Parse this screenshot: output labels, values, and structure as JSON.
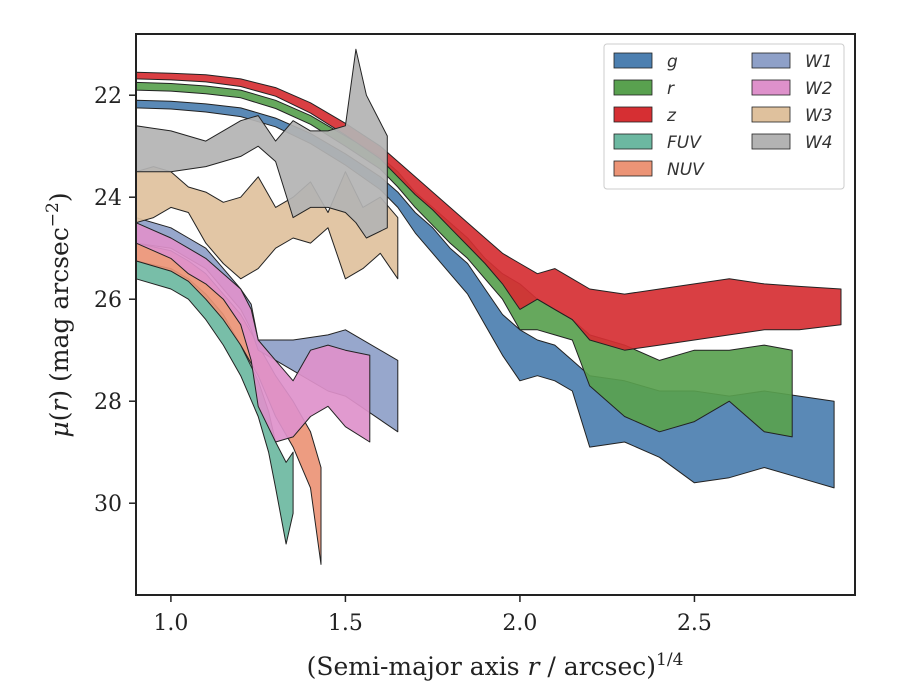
{
  "chart_data": {
    "type": "area",
    "title": "",
    "xlabel": "(Semi-major axis r / arcsec)^1/4",
    "ylabel": "μ(r) (mag arcsec^−2)",
    "xlim": [
      0.9,
      2.96
    ],
    "ylim": [
      31.8,
      20.8
    ],
    "y_inverted": true,
    "xticks": [
      1.0,
      1.5,
      2.0,
      2.5
    ],
    "xtick_labels": [
      "1.0",
      "1.5",
      "2.0",
      "2.5"
    ],
    "yticks": [
      22,
      24,
      26,
      28,
      30
    ],
    "ytick_labels": [
      "22",
      "24",
      "26",
      "28",
      "30"
    ],
    "grid": false,
    "legend_position": "top-right",
    "legend_columns": 2,
    "series": [
      {
        "name": "g",
        "color": "#4c7fb0",
        "band": [
          [
            0.9,
            22.1,
            22.25
          ],
          [
            1.0,
            22.12,
            22.27
          ],
          [
            1.1,
            22.17,
            22.33
          ],
          [
            1.2,
            22.25,
            22.42
          ],
          [
            1.3,
            22.45,
            22.62
          ],
          [
            1.4,
            22.75,
            22.95
          ],
          [
            1.5,
            23.15,
            23.37
          ],
          [
            1.6,
            23.6,
            23.85
          ],
          [
            1.65,
            23.9,
            24.2
          ],
          [
            1.7,
            24.3,
            24.7
          ],
          [
            1.75,
            24.6,
            25.1
          ],
          [
            1.8,
            25.0,
            25.5
          ],
          [
            1.85,
            25.3,
            25.9
          ],
          [
            1.9,
            25.8,
            26.5
          ],
          [
            1.95,
            26.3,
            27.1
          ],
          [
            2.0,
            26.6,
            27.6
          ],
          [
            2.05,
            26.8,
            27.5
          ],
          [
            2.1,
            26.9,
            27.6
          ],
          [
            2.15,
            27.2,
            27.8
          ],
          [
            2.2,
            27.5,
            28.9
          ],
          [
            2.3,
            27.6,
            28.8
          ],
          [
            2.4,
            27.8,
            29.1
          ],
          [
            2.5,
            27.8,
            29.6
          ],
          [
            2.6,
            27.9,
            29.5
          ],
          [
            2.7,
            27.8,
            29.3
          ],
          [
            2.8,
            27.9,
            29.5
          ],
          [
            2.9,
            28.0,
            29.7
          ]
        ]
      },
      {
        "name": "r",
        "color": "#59a14f",
        "band": [
          [
            0.9,
            21.75,
            21.9
          ],
          [
            1.0,
            21.77,
            21.92
          ],
          [
            1.1,
            21.82,
            21.97
          ],
          [
            1.2,
            21.9,
            22.05
          ],
          [
            1.3,
            22.1,
            22.26
          ],
          [
            1.4,
            22.4,
            22.57
          ],
          [
            1.5,
            22.8,
            23.0
          ],
          [
            1.6,
            23.2,
            23.45
          ],
          [
            1.65,
            23.5,
            23.8
          ],
          [
            1.7,
            23.9,
            24.2
          ],
          [
            1.75,
            24.2,
            24.55
          ],
          [
            1.8,
            24.5,
            24.9
          ],
          [
            1.85,
            24.8,
            25.2
          ],
          [
            1.9,
            25.2,
            25.6
          ],
          [
            1.95,
            25.5,
            26.0
          ],
          [
            2.0,
            25.7,
            26.6
          ],
          [
            2.05,
            26.0,
            26.6
          ],
          [
            2.1,
            26.2,
            26.7
          ],
          [
            2.15,
            26.4,
            26.8
          ],
          [
            2.2,
            26.7,
            27.7
          ],
          [
            2.3,
            26.9,
            28.3
          ],
          [
            2.4,
            27.2,
            28.6
          ],
          [
            2.5,
            27.0,
            28.4
          ],
          [
            2.6,
            27.0,
            28.0
          ],
          [
            2.7,
            26.9,
            28.6
          ],
          [
            2.78,
            27.0,
            28.7
          ]
        ]
      },
      {
        "name": "z",
        "color": "#d62f33",
        "band": [
          [
            0.9,
            21.55,
            21.68
          ],
          [
            1.0,
            21.57,
            21.7
          ],
          [
            1.1,
            21.6,
            21.74
          ],
          [
            1.2,
            21.68,
            21.83
          ],
          [
            1.3,
            21.85,
            22.02
          ],
          [
            1.4,
            22.15,
            22.35
          ],
          [
            1.5,
            22.55,
            22.78
          ],
          [
            1.6,
            23.0,
            23.25
          ],
          [
            1.65,
            23.3,
            23.6
          ],
          [
            1.7,
            23.6,
            23.95
          ],
          [
            1.75,
            23.9,
            24.25
          ],
          [
            1.8,
            24.2,
            24.6
          ],
          [
            1.85,
            24.5,
            24.95
          ],
          [
            1.9,
            24.8,
            25.3
          ],
          [
            1.95,
            25.1,
            25.7
          ],
          [
            2.0,
            25.3,
            26.2
          ],
          [
            2.05,
            25.5,
            26.0
          ],
          [
            2.1,
            25.4,
            26.2
          ],
          [
            2.15,
            25.6,
            26.4
          ],
          [
            2.2,
            25.8,
            26.8
          ],
          [
            2.3,
            25.9,
            27.0
          ],
          [
            2.4,
            25.8,
            26.9
          ],
          [
            2.5,
            25.7,
            26.8
          ],
          [
            2.6,
            25.6,
            26.7
          ],
          [
            2.7,
            25.7,
            26.6
          ],
          [
            2.8,
            25.75,
            26.6
          ],
          [
            2.92,
            25.8,
            26.5
          ]
        ]
      },
      {
        "name": "FUV",
        "color": "#6cb8a1",
        "band": [
          [
            0.9,
            25.25,
            25.6
          ],
          [
            1.0,
            25.4,
            25.8
          ],
          [
            1.05,
            25.6,
            26.0
          ],
          [
            1.1,
            25.9,
            26.4
          ],
          [
            1.15,
            26.3,
            26.9
          ],
          [
            1.2,
            26.9,
            27.5
          ],
          [
            1.25,
            27.6,
            28.3
          ],
          [
            1.28,
            28.2,
            29.0
          ],
          [
            1.3,
            28.8,
            29.7
          ],
          [
            1.33,
            29.2,
            30.8
          ],
          [
            1.35,
            29.0,
            30.2
          ]
        ]
      },
      {
        "name": "NUV",
        "color": "#ec9476",
        "band": [
          [
            0.9,
            24.9,
            25.25
          ],
          [
            1.0,
            25.05,
            25.45
          ],
          [
            1.05,
            25.25,
            25.65
          ],
          [
            1.1,
            25.5,
            26.0
          ],
          [
            1.15,
            25.9,
            26.4
          ],
          [
            1.2,
            26.3,
            26.9
          ],
          [
            1.25,
            26.9,
            27.5
          ],
          [
            1.3,
            27.5,
            28.3
          ],
          [
            1.35,
            28.0,
            28.9
          ],
          [
            1.4,
            28.6,
            29.7
          ],
          [
            1.43,
            29.3,
            31.2
          ]
        ]
      },
      {
        "name": "W1",
        "color": "#8ea0c8",
        "band": [
          [
            0.9,
            24.4,
            24.9
          ],
          [
            1.0,
            24.6,
            25.0
          ],
          [
            1.05,
            24.8,
            25.2
          ],
          [
            1.1,
            25.0,
            25.4
          ],
          [
            1.15,
            25.4,
            25.8
          ],
          [
            1.2,
            25.8,
            26.2
          ],
          [
            1.23,
            26.1,
            26.6
          ],
          [
            1.25,
            26.8,
            27.0
          ],
          [
            1.35,
            26.8,
            27.4
          ],
          [
            1.45,
            26.7,
            27.8
          ],
          [
            1.5,
            26.6,
            27.9
          ],
          [
            1.65,
            27.2,
            28.6
          ]
        ]
      },
      {
        "name": "W2",
        "color": "#de91cb",
        "band": [
          [
            0.9,
            24.5,
            24.9
          ],
          [
            1.0,
            24.8,
            25.2
          ],
          [
            1.05,
            25.0,
            25.5
          ],
          [
            1.1,
            25.2,
            25.7
          ],
          [
            1.15,
            25.5,
            26.0
          ],
          [
            1.2,
            25.8,
            26.5
          ],
          [
            1.23,
            26.2,
            27.2
          ],
          [
            1.25,
            26.8,
            28.1
          ],
          [
            1.3,
            27.2,
            28.8
          ],
          [
            1.35,
            27.6,
            28.7
          ],
          [
            1.4,
            27.0,
            28.3
          ],
          [
            1.45,
            26.9,
            28.1
          ],
          [
            1.5,
            27.0,
            28.5
          ],
          [
            1.57,
            27.1,
            28.8
          ]
        ]
      },
      {
        "name": "W3",
        "color": "#dfc19d",
        "band": [
          [
            0.9,
            23.5,
            24.5
          ],
          [
            0.95,
            23.4,
            24.4
          ],
          [
            1.0,
            23.5,
            24.2
          ],
          [
            1.05,
            23.8,
            24.3
          ],
          [
            1.1,
            23.9,
            24.9
          ],
          [
            1.15,
            24.1,
            25.3
          ],
          [
            1.2,
            24.0,
            25.6
          ],
          [
            1.25,
            23.6,
            25.4
          ],
          [
            1.3,
            24.2,
            25.0
          ],
          [
            1.35,
            24.0,
            24.8
          ],
          [
            1.4,
            23.7,
            24.9
          ],
          [
            1.45,
            24.3,
            24.6
          ],
          [
            1.5,
            23.5,
            25.6
          ],
          [
            1.55,
            24.2,
            25.4
          ],
          [
            1.6,
            24.0,
            25.1
          ],
          [
            1.65,
            24.4,
            25.6
          ]
        ]
      },
      {
        "name": "W4",
        "color": "#b3b3b3",
        "band": [
          [
            0.9,
            22.6,
            23.5
          ],
          [
            1.0,
            22.7,
            23.5
          ],
          [
            1.1,
            22.9,
            23.4
          ],
          [
            1.2,
            22.5,
            23.2
          ],
          [
            1.25,
            22.4,
            23.0
          ],
          [
            1.3,
            22.9,
            23.3
          ],
          [
            1.35,
            22.5,
            24.4
          ],
          [
            1.4,
            22.7,
            24.2
          ],
          [
            1.45,
            22.7,
            24.2
          ],
          [
            1.5,
            22.6,
            24.3
          ],
          [
            1.53,
            21.1,
            24.5
          ],
          [
            1.56,
            22.0,
            24.8
          ],
          [
            1.62,
            22.8,
            24.6
          ]
        ]
      }
    ]
  }
}
